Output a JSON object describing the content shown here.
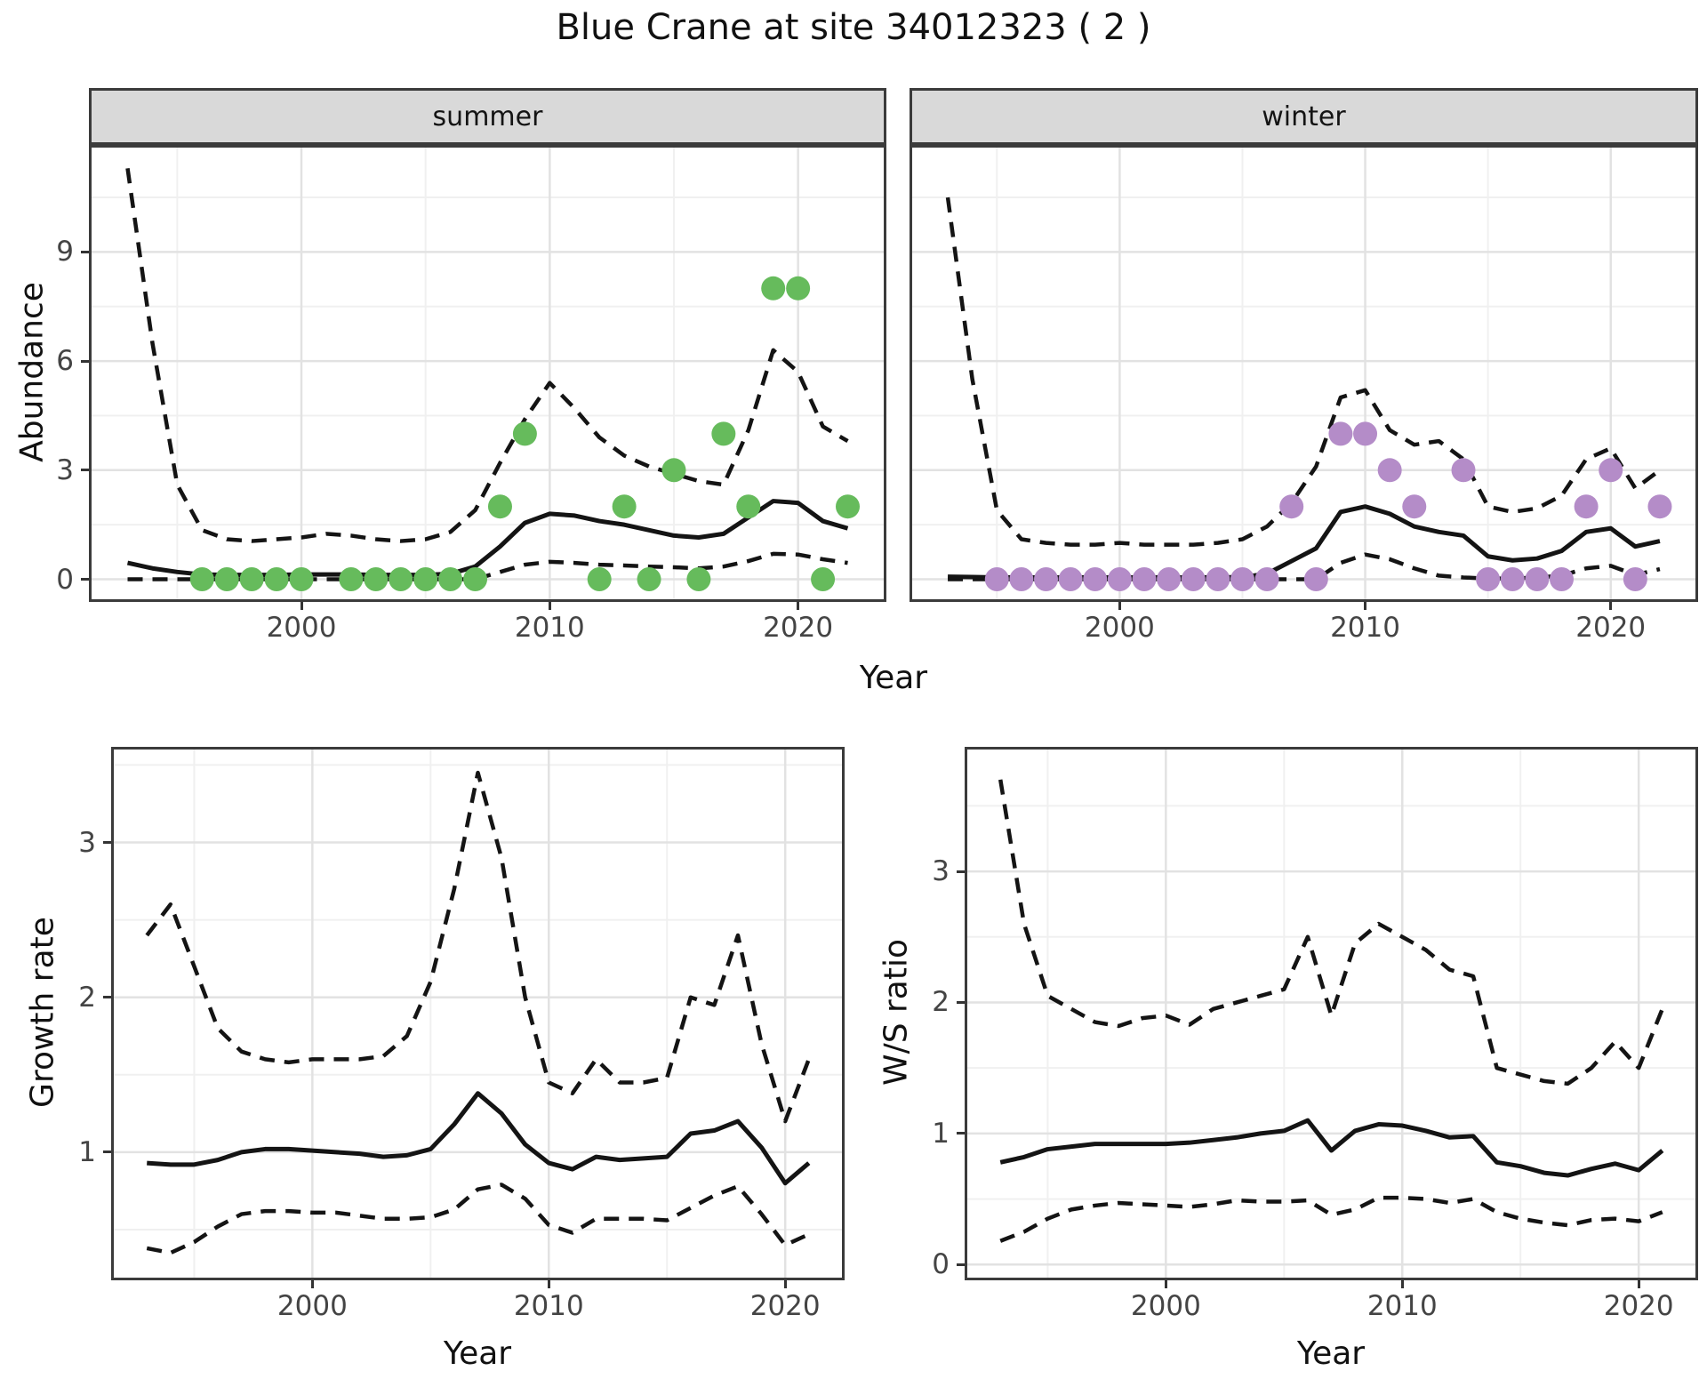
{
  "title": "Blue Crane at site 34012323 ( 2 )",
  "colors": {
    "summer_point": "#66bb5c",
    "winter_point": "#b48cc8",
    "line": "#141414",
    "strip_background": "#d9d9d9",
    "panel_border": "#3b3b3b",
    "grid_major": "#e2e2e2",
    "grid_minor": "#f0f0f0",
    "tick_text": "#444444"
  },
  "chart_data": [
    {
      "id": "summer",
      "type": "line",
      "facet_label": "summer",
      "xlabel": "Year",
      "ylabel": "Abundance",
      "x": [
        1993,
        1994,
        1995,
        1996,
        1997,
        1998,
        1999,
        2000,
        2001,
        2002,
        2003,
        2004,
        2005,
        2006,
        2007,
        2008,
        2009,
        2010,
        2011,
        2012,
        2013,
        2014,
        2015,
        2016,
        2017,
        2018,
        2019,
        2020,
        2021,
        2022
      ],
      "series": [
        {
          "name": "upper_ci",
          "style": "dashed",
          "values": [
            11.3,
            6.5,
            2.6,
            1.35,
            1.1,
            1.05,
            1.1,
            1.15,
            1.25,
            1.2,
            1.1,
            1.05,
            1.1,
            1.3,
            1.9,
            3.2,
            4.4,
            5.4,
            4.7,
            3.9,
            3.4,
            3.1,
            2.9,
            2.7,
            2.6,
            4.1,
            6.3,
            5.7,
            4.2,
            3.8
          ]
        },
        {
          "name": "median",
          "style": "solid",
          "values": [
            0.45,
            0.3,
            0.2,
            0.13,
            0.12,
            0.12,
            0.12,
            0.13,
            0.13,
            0.13,
            0.12,
            0.12,
            0.12,
            0.15,
            0.35,
            0.9,
            1.55,
            1.8,
            1.75,
            1.6,
            1.5,
            1.35,
            1.2,
            1.15,
            1.25,
            1.7,
            2.15,
            2.1,
            1.6,
            1.4
          ]
        },
        {
          "name": "lower_ci",
          "style": "dashed",
          "values": [
            0,
            0,
            0,
            0,
            0,
            0,
            0,
            0,
            0,
            0,
            0,
            0,
            0,
            0,
            0,
            0.2,
            0.4,
            0.48,
            0.45,
            0.4,
            0.38,
            0.35,
            0.33,
            0.3,
            0.35,
            0.5,
            0.7,
            0.68,
            0.55,
            0.45
          ]
        }
      ],
      "points": {
        "name": "observed-counts-summer",
        "color": "#66bb5c",
        "xy": [
          [
            1996,
            0
          ],
          [
            1997,
            0
          ],
          [
            1998,
            0
          ],
          [
            1999,
            0
          ],
          [
            2000,
            0
          ],
          [
            2002,
            0
          ],
          [
            2003,
            0
          ],
          [
            2004,
            0
          ],
          [
            2005,
            0
          ],
          [
            2006,
            0
          ],
          [
            2007,
            0
          ],
          [
            2008,
            2
          ],
          [
            2009,
            4
          ],
          [
            2012,
            0
          ],
          [
            2013,
            2
          ],
          [
            2014,
            0
          ],
          [
            2015,
            3
          ],
          [
            2016,
            0
          ],
          [
            2017,
            4
          ],
          [
            2018,
            2
          ],
          [
            2019,
            8
          ],
          [
            2020,
            8
          ],
          [
            2021,
            0
          ],
          [
            2022,
            2
          ]
        ]
      },
      "xlim": [
        1991.55,
        2023.45
      ],
      "ylim": [
        -0.55,
        11.87
      ],
      "xticks": [
        2000,
        2010,
        2020
      ],
      "xticks_minor": [
        1995,
        2005,
        2015
      ],
      "yticks": [
        0,
        3,
        6,
        9
      ],
      "yticks_minor": [
        1.5,
        4.5,
        7.5,
        10.5
      ],
      "show_ytick_labels": true
    },
    {
      "id": "winter",
      "type": "line",
      "facet_label": "winter",
      "xlabel": "Year",
      "ylabel": "",
      "x": [
        1993,
        1994,
        1995,
        1996,
        1997,
        1998,
        1999,
        2000,
        2001,
        2002,
        2003,
        2004,
        2005,
        2006,
        2007,
        2008,
        2009,
        2010,
        2011,
        2012,
        2013,
        2014,
        2015,
        2016,
        2017,
        2018,
        2019,
        2020,
        2021,
        2022
      ],
      "series": [
        {
          "name": "upper_ci",
          "style": "dashed",
          "values": [
            10.5,
            5.5,
            1.9,
            1.1,
            1.0,
            0.95,
            0.95,
            1.0,
            0.95,
            0.95,
            0.95,
            1.0,
            1.1,
            1.45,
            2.1,
            3.1,
            5.0,
            5.2,
            4.1,
            3.7,
            3.8,
            3.3,
            2.0,
            1.85,
            1.95,
            2.3,
            3.3,
            3.6,
            2.5,
            3.0
          ]
        },
        {
          "name": "median",
          "style": "solid",
          "values": [
            0.07,
            0.06,
            0.05,
            0.05,
            0.05,
            0.05,
            0.05,
            0.05,
            0.05,
            0.05,
            0.05,
            0.05,
            0.06,
            0.15,
            0.5,
            0.85,
            1.85,
            2.0,
            1.8,
            1.45,
            1.3,
            1.2,
            0.63,
            0.52,
            0.57,
            0.78,
            1.3,
            1.4,
            0.9,
            1.05
          ]
        },
        {
          "name": "lower_ci",
          "style": "dashed",
          "values": [
            0,
            0,
            0,
            0,
            0,
            0,
            0,
            0,
            0,
            0,
            0,
            0,
            0,
            0,
            0,
            0,
            0.45,
            0.68,
            0.55,
            0.3,
            0.1,
            0.05,
            0.02,
            0.02,
            0.05,
            0.1,
            0.3,
            0.37,
            0.12,
            0.28
          ]
        }
      ],
      "points": {
        "name": "observed-counts-winter",
        "color": "#b48cc8",
        "xy": [
          [
            1995,
            0
          ],
          [
            1996,
            0
          ],
          [
            1997,
            0
          ],
          [
            1998,
            0
          ],
          [
            1999,
            0
          ],
          [
            2000,
            0
          ],
          [
            2001,
            0
          ],
          [
            2002,
            0
          ],
          [
            2003,
            0
          ],
          [
            2004,
            0
          ],
          [
            2005,
            0
          ],
          [
            2006,
            0
          ],
          [
            2007,
            2
          ],
          [
            2008,
            0
          ],
          [
            2009,
            4
          ],
          [
            2010,
            4
          ],
          [
            2011,
            3
          ],
          [
            2012,
            2
          ],
          [
            2014,
            3
          ],
          [
            2015,
            0
          ],
          [
            2016,
            0
          ],
          [
            2017,
            0
          ],
          [
            2018,
            0
          ],
          [
            2019,
            2
          ],
          [
            2020,
            3
          ],
          [
            2021,
            0
          ],
          [
            2022,
            2
          ]
        ]
      },
      "xlim": [
        1991.55,
        2023.45
      ],
      "ylim": [
        -0.55,
        11.87
      ],
      "xticks": [
        2000,
        2010,
        2020
      ],
      "xticks_minor": [
        1995,
        2005,
        2015
      ],
      "yticks": [
        0,
        3,
        6,
        9
      ],
      "yticks_minor": [
        1.5,
        4.5,
        7.5,
        10.5
      ],
      "show_ytick_labels": false
    },
    {
      "id": "growth",
      "type": "line",
      "facet_label": "",
      "xlabel": "Year",
      "ylabel": "Growth rate",
      "x": [
        1993,
        1994,
        1995,
        1996,
        1997,
        1998,
        1999,
        2000,
        2001,
        2002,
        2003,
        2004,
        2005,
        2006,
        2007,
        2008,
        2009,
        2010,
        2011,
        2012,
        2013,
        2014,
        2015,
        2016,
        2017,
        2018,
        2019,
        2020,
        2021
      ],
      "series": [
        {
          "name": "upper_ci",
          "style": "dashed",
          "values": [
            2.4,
            2.6,
            2.2,
            1.8,
            1.65,
            1.6,
            1.58,
            1.6,
            1.6,
            1.6,
            1.62,
            1.75,
            2.1,
            2.7,
            3.45,
            2.9,
            2.0,
            1.45,
            1.38,
            1.6,
            1.45,
            1.45,
            1.48,
            2.0,
            1.95,
            2.4,
            1.7,
            1.2,
            1.6
          ]
        },
        {
          "name": "median",
          "style": "solid",
          "values": [
            0.93,
            0.92,
            0.92,
            0.95,
            1.0,
            1.02,
            1.02,
            1.01,
            1.0,
            0.99,
            0.97,
            0.98,
            1.02,
            1.18,
            1.38,
            1.25,
            1.05,
            0.93,
            0.89,
            0.97,
            0.95,
            0.96,
            0.97,
            1.12,
            1.14,
            1.2,
            1.03,
            0.8,
            0.93
          ]
        },
        {
          "name": "lower_ci",
          "style": "dashed",
          "values": [
            0.38,
            0.35,
            0.42,
            0.52,
            0.6,
            0.62,
            0.62,
            0.61,
            0.61,
            0.59,
            0.57,
            0.57,
            0.58,
            0.63,
            0.76,
            0.79,
            0.7,
            0.53,
            0.48,
            0.57,
            0.57,
            0.57,
            0.56,
            0.64,
            0.72,
            0.78,
            0.6,
            0.4,
            0.47
          ]
        }
      ],
      "points": null,
      "xlim": [
        1991.6,
        2022.4
      ],
      "ylim": [
        0.19,
        3.6
      ],
      "xticks": [
        2000,
        2010,
        2020
      ],
      "xticks_minor": [
        1995,
        2005,
        2015
      ],
      "yticks": [
        1,
        2,
        3
      ],
      "yticks_minor": [
        0.5,
        1.5,
        2.5,
        3.5
      ],
      "show_ytick_labels": true
    },
    {
      "id": "ws",
      "type": "line",
      "facet_label": "",
      "xlabel": "Year",
      "ylabel": "W/S ratio",
      "x": [
        1993,
        1994,
        1995,
        1996,
        1997,
        1998,
        1999,
        2000,
        2001,
        2002,
        2003,
        2004,
        2005,
        2006,
        2007,
        2008,
        2009,
        2010,
        2011,
        2012,
        2013,
        2014,
        2015,
        2016,
        2017,
        2018,
        2019,
        2020,
        2021
      ],
      "series": [
        {
          "name": "upper_ci",
          "style": "dashed",
          "values": [
            3.7,
            2.6,
            2.05,
            1.95,
            1.85,
            1.82,
            1.88,
            1.9,
            1.83,
            1.95,
            2.0,
            2.05,
            2.1,
            2.5,
            1.9,
            2.45,
            2.6,
            2.5,
            2.4,
            2.25,
            2.2,
            1.5,
            1.45,
            1.4,
            1.38,
            1.5,
            1.7,
            1.5,
            1.95
          ]
        },
        {
          "name": "median",
          "style": "solid",
          "values": [
            0.78,
            0.82,
            0.88,
            0.9,
            0.92,
            0.92,
            0.92,
            0.92,
            0.93,
            0.95,
            0.97,
            1.0,
            1.02,
            1.1,
            0.87,
            1.02,
            1.07,
            1.06,
            1.02,
            0.97,
            0.98,
            0.78,
            0.75,
            0.7,
            0.68,
            0.73,
            0.77,
            0.72,
            0.87
          ]
        },
        {
          "name": "lower_ci",
          "style": "dashed",
          "values": [
            0.18,
            0.25,
            0.35,
            0.42,
            0.45,
            0.47,
            0.46,
            0.45,
            0.44,
            0.46,
            0.49,
            0.48,
            0.48,
            0.49,
            0.38,
            0.42,
            0.51,
            0.51,
            0.5,
            0.47,
            0.5,
            0.4,
            0.35,
            0.32,
            0.3,
            0.34,
            0.35,
            0.33,
            0.4
          ]
        }
      ],
      "points": null,
      "xlim": [
        1991.6,
        2022.4
      ],
      "ylim": [
        -0.1,
        3.93
      ],
      "xticks": [
        2000,
        2010,
        2020
      ],
      "xticks_minor": [
        1995,
        2005,
        2015
      ],
      "yticks": [
        0,
        1,
        2,
        3
      ],
      "yticks_minor": [
        0.5,
        1.5,
        2.5,
        3.5
      ],
      "show_ytick_labels": true
    }
  ]
}
